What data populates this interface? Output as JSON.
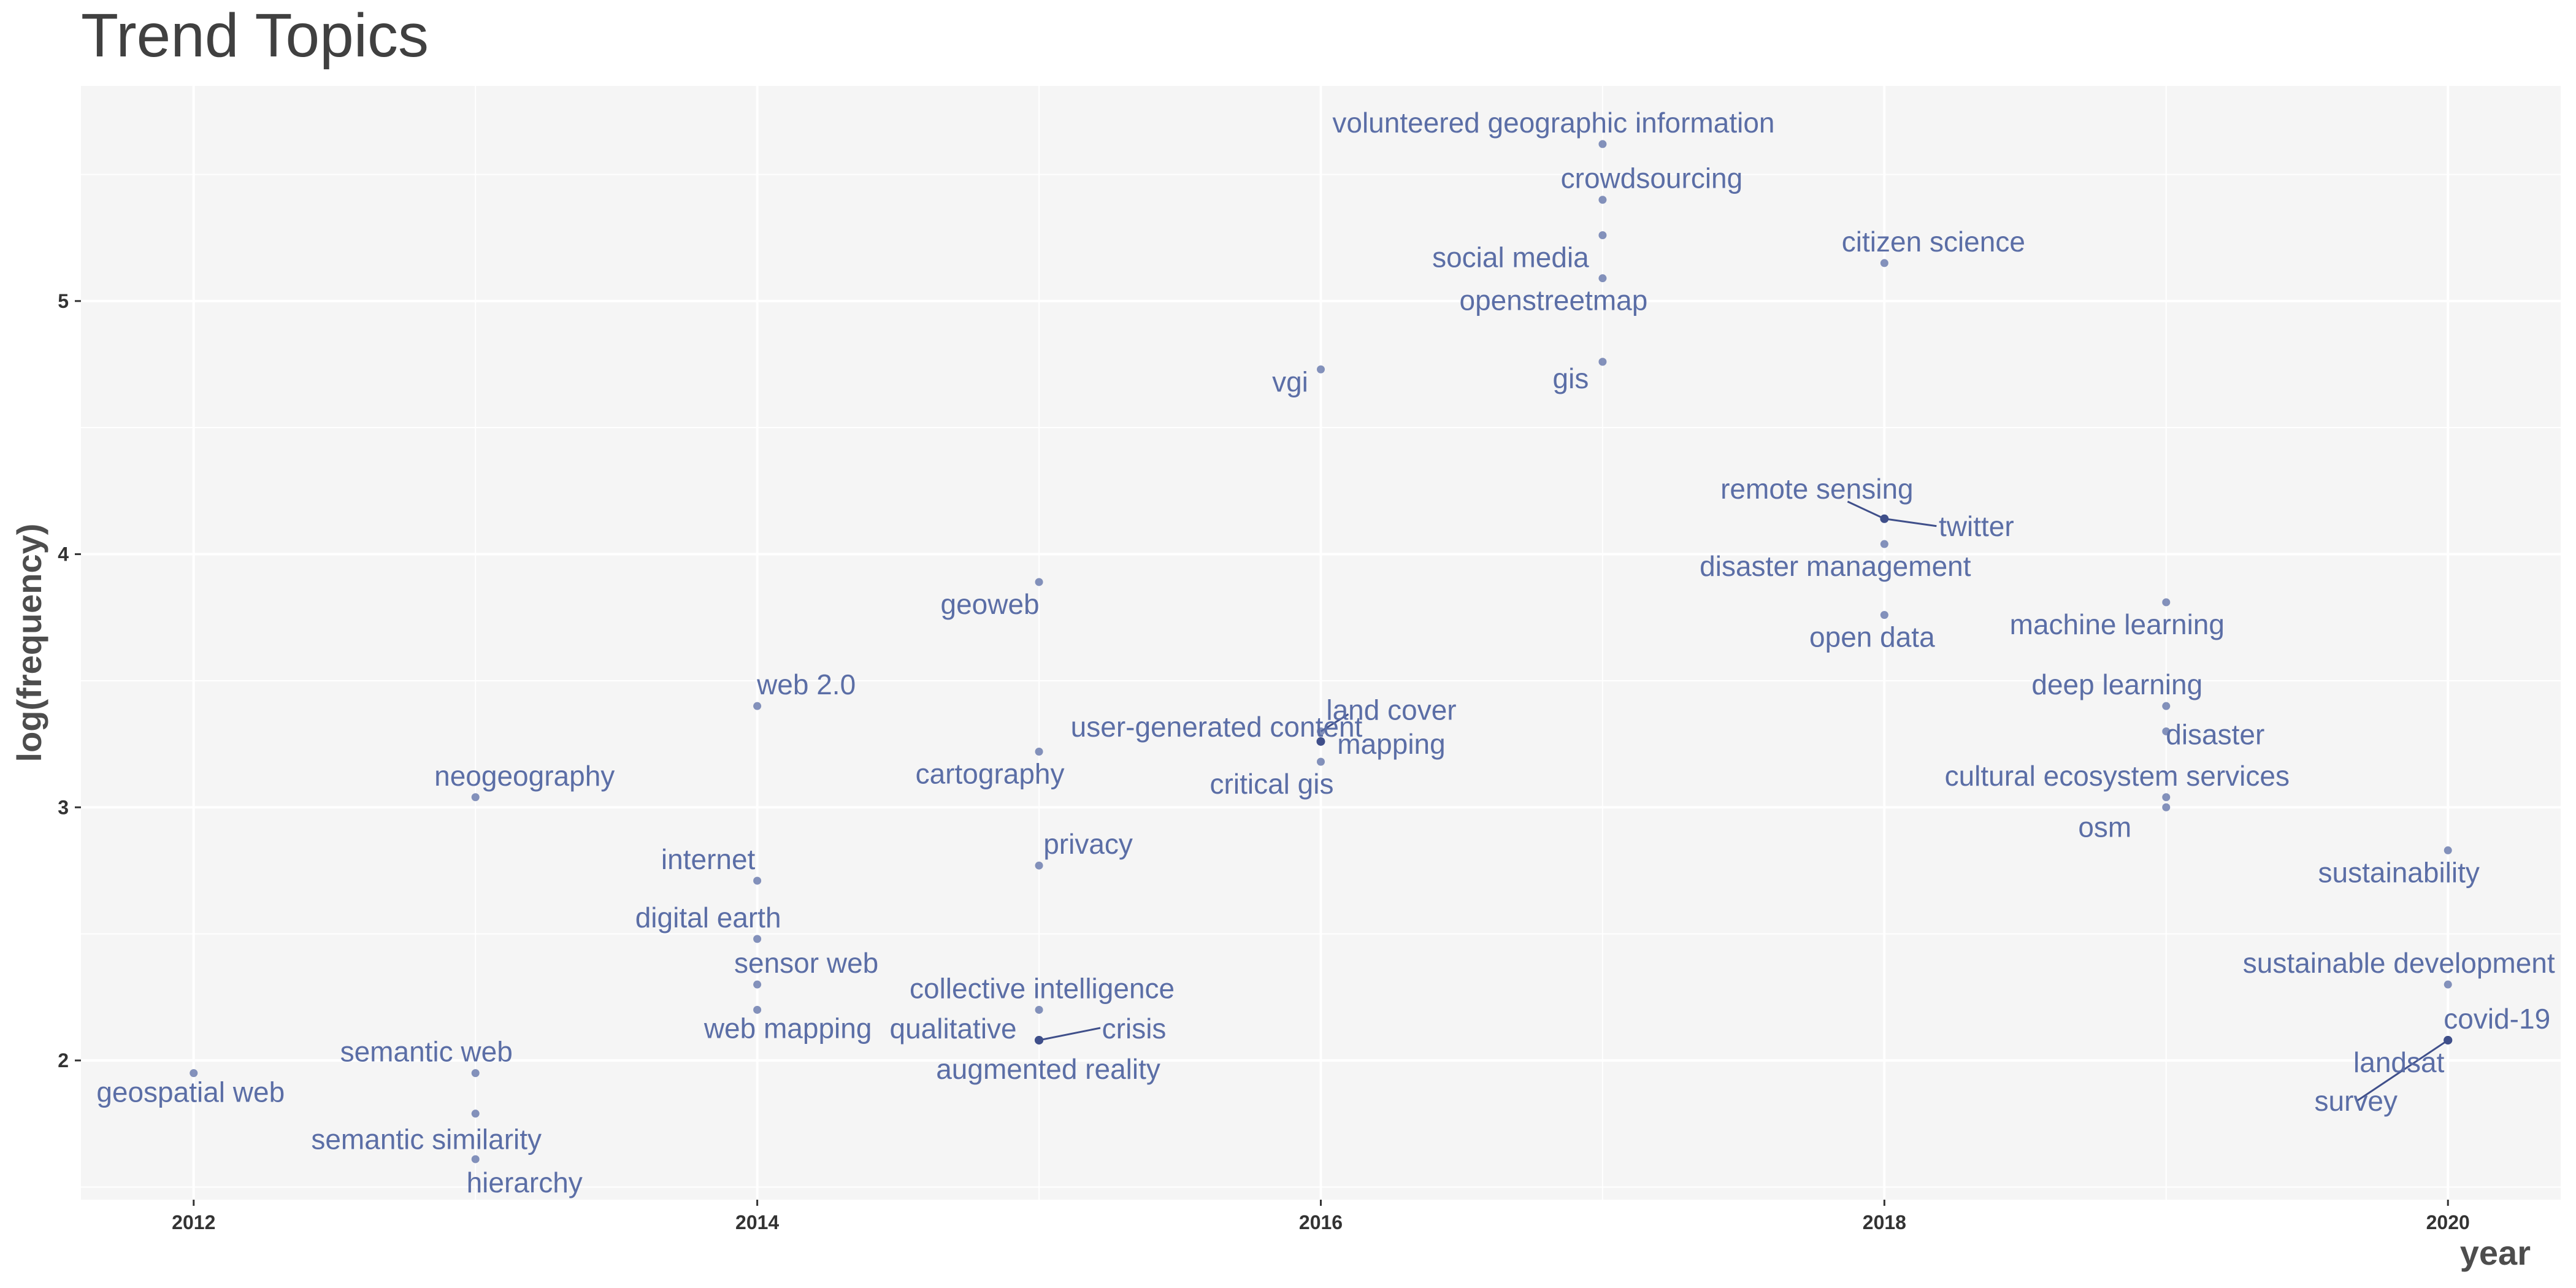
{
  "chart_data": {
    "type": "scatter",
    "title": "Trend Topics",
    "xlabel": "year",
    "ylabel": "log(frequency)",
    "xlim": [
      2011.6,
      2020.4
    ],
    "ylim": [
      1.45,
      5.85
    ],
    "x_ticks": [
      2012,
      2014,
      2016,
      2018,
      2020
    ],
    "y_ticks": [
      2,
      3,
      4,
      5
    ],
    "grid": true,
    "point_color": "#5b6ea6",
    "panel_color": "#f5f5f5",
    "points": [
      {
        "x": 2012,
        "y": 1.95,
        "label": "geospatial web"
      },
      {
        "x": 2013,
        "y": 3.04,
        "label": "neogeography"
      },
      {
        "x": 2013,
        "y": 1.95,
        "label": "semantic web"
      },
      {
        "x": 2013,
        "y": 1.79,
        "label": "semantic similarity"
      },
      {
        "x": 2013,
        "y": 1.61,
        "label": "hierarchy"
      },
      {
        "x": 2014,
        "y": 3.4,
        "label": "web 2.0"
      },
      {
        "x": 2014,
        "y": 2.71,
        "label": "internet"
      },
      {
        "x": 2014,
        "y": 2.48,
        "label": "digital earth"
      },
      {
        "x": 2014,
        "y": 2.3,
        "label": "sensor web"
      },
      {
        "x": 2014,
        "y": 2.2,
        "label": "web mapping"
      },
      {
        "x": 2015,
        "y": 3.89,
        "label": "geoweb"
      },
      {
        "x": 2015,
        "y": 3.22,
        "label": "cartography"
      },
      {
        "x": 2015,
        "y": 2.77,
        "label": "privacy"
      },
      {
        "x": 2015,
        "y": 2.2,
        "label": "collective intelligence"
      },
      {
        "x": 2015,
        "y": 2.08,
        "label": "qualitative"
      },
      {
        "x": 2015,
        "y": 2.08,
        "label": "crisis"
      },
      {
        "x": 2015,
        "y": 2.08,
        "label": "augmented reality"
      },
      {
        "x": 2016,
        "y": 4.73,
        "label": "vgi"
      },
      {
        "x": 2016,
        "y": 3.3,
        "label": "land cover"
      },
      {
        "x": 2016,
        "y": 3.26,
        "label": "user-generated content"
      },
      {
        "x": 2016,
        "y": 3.26,
        "label": "mapping"
      },
      {
        "x": 2016,
        "y": 3.18,
        "label": "critical gis"
      },
      {
        "x": 2017,
        "y": 5.62,
        "label": "volunteered geographic information"
      },
      {
        "x": 2017,
        "y": 5.4,
        "label": "crowdsourcing"
      },
      {
        "x": 2017,
        "y": 5.26,
        "label": "social media"
      },
      {
        "x": 2017,
        "y": 5.09,
        "label": "openstreetmap"
      },
      {
        "x": 2017,
        "y": 4.76,
        "label": "gis"
      },
      {
        "x": 2018,
        "y": 5.15,
        "label": "citizen science"
      },
      {
        "x": 2018,
        "y": 4.14,
        "label": "remote sensing"
      },
      {
        "x": 2018,
        "y": 4.14,
        "label": "twitter"
      },
      {
        "x": 2018,
        "y": 4.04,
        "label": "disaster management"
      },
      {
        "x": 2018,
        "y": 3.76,
        "label": "open data"
      },
      {
        "x": 2019,
        "y": 3.81,
        "label": "machine learning"
      },
      {
        "x": 2019,
        "y": 3.4,
        "label": "deep learning"
      },
      {
        "x": 2019,
        "y": 3.3,
        "label": "disaster"
      },
      {
        "x": 2019,
        "y": 3.04,
        "label": "cultural ecosystem services"
      },
      {
        "x": 2019,
        "y": 3.0,
        "label": "osm"
      },
      {
        "x": 2020,
        "y": 2.83,
        "label": "sustainability"
      },
      {
        "x": 2020,
        "y": 2.3,
        "label": "sustainable development"
      },
      {
        "x": 2020,
        "y": 2.08,
        "label": "covid-19"
      },
      {
        "x": 2020,
        "y": 2.08,
        "label": "landsat"
      },
      {
        "x": 2020,
        "y": 2.08,
        "label": "survey"
      }
    ]
  }
}
